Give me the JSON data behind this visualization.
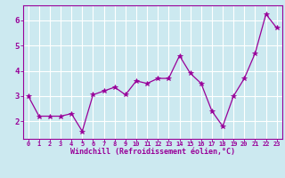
{
  "x": [
    0,
    1,
    2,
    3,
    4,
    5,
    6,
    7,
    8,
    9,
    10,
    11,
    12,
    13,
    14,
    15,
    16,
    17,
    18,
    19,
    20,
    21,
    22,
    23
  ],
  "y": [
    3.0,
    2.2,
    2.2,
    2.2,
    2.3,
    1.6,
    3.05,
    3.2,
    3.35,
    3.05,
    3.6,
    3.5,
    3.7,
    3.7,
    4.6,
    3.9,
    3.5,
    2.4,
    1.8,
    3.0,
    3.7,
    4.7,
    6.25,
    5.7
  ],
  "line_color": "#990099",
  "marker": "*",
  "marker_size": 4,
  "bg_color": "#cce9f0",
  "grid_color": "#ffffff",
  "xlabel": "Windchill (Refroidissement éolien,°C)",
  "xlabel_color": "#990099",
  "tick_color": "#990099",
  "ylim": [
    1.3,
    6.6
  ],
  "xlim": [
    -0.5,
    23.5
  ],
  "yticks": [
    2,
    3,
    4,
    5,
    6
  ],
  "xticks": [
    0,
    1,
    2,
    3,
    4,
    5,
    6,
    7,
    8,
    9,
    10,
    11,
    12,
    13,
    14,
    15,
    16,
    17,
    18,
    19,
    20,
    21,
    22,
    23
  ],
  "xtick_fontsize": 5.0,
  "ytick_fontsize": 6.5,
  "xlabel_fontsize": 6.0
}
